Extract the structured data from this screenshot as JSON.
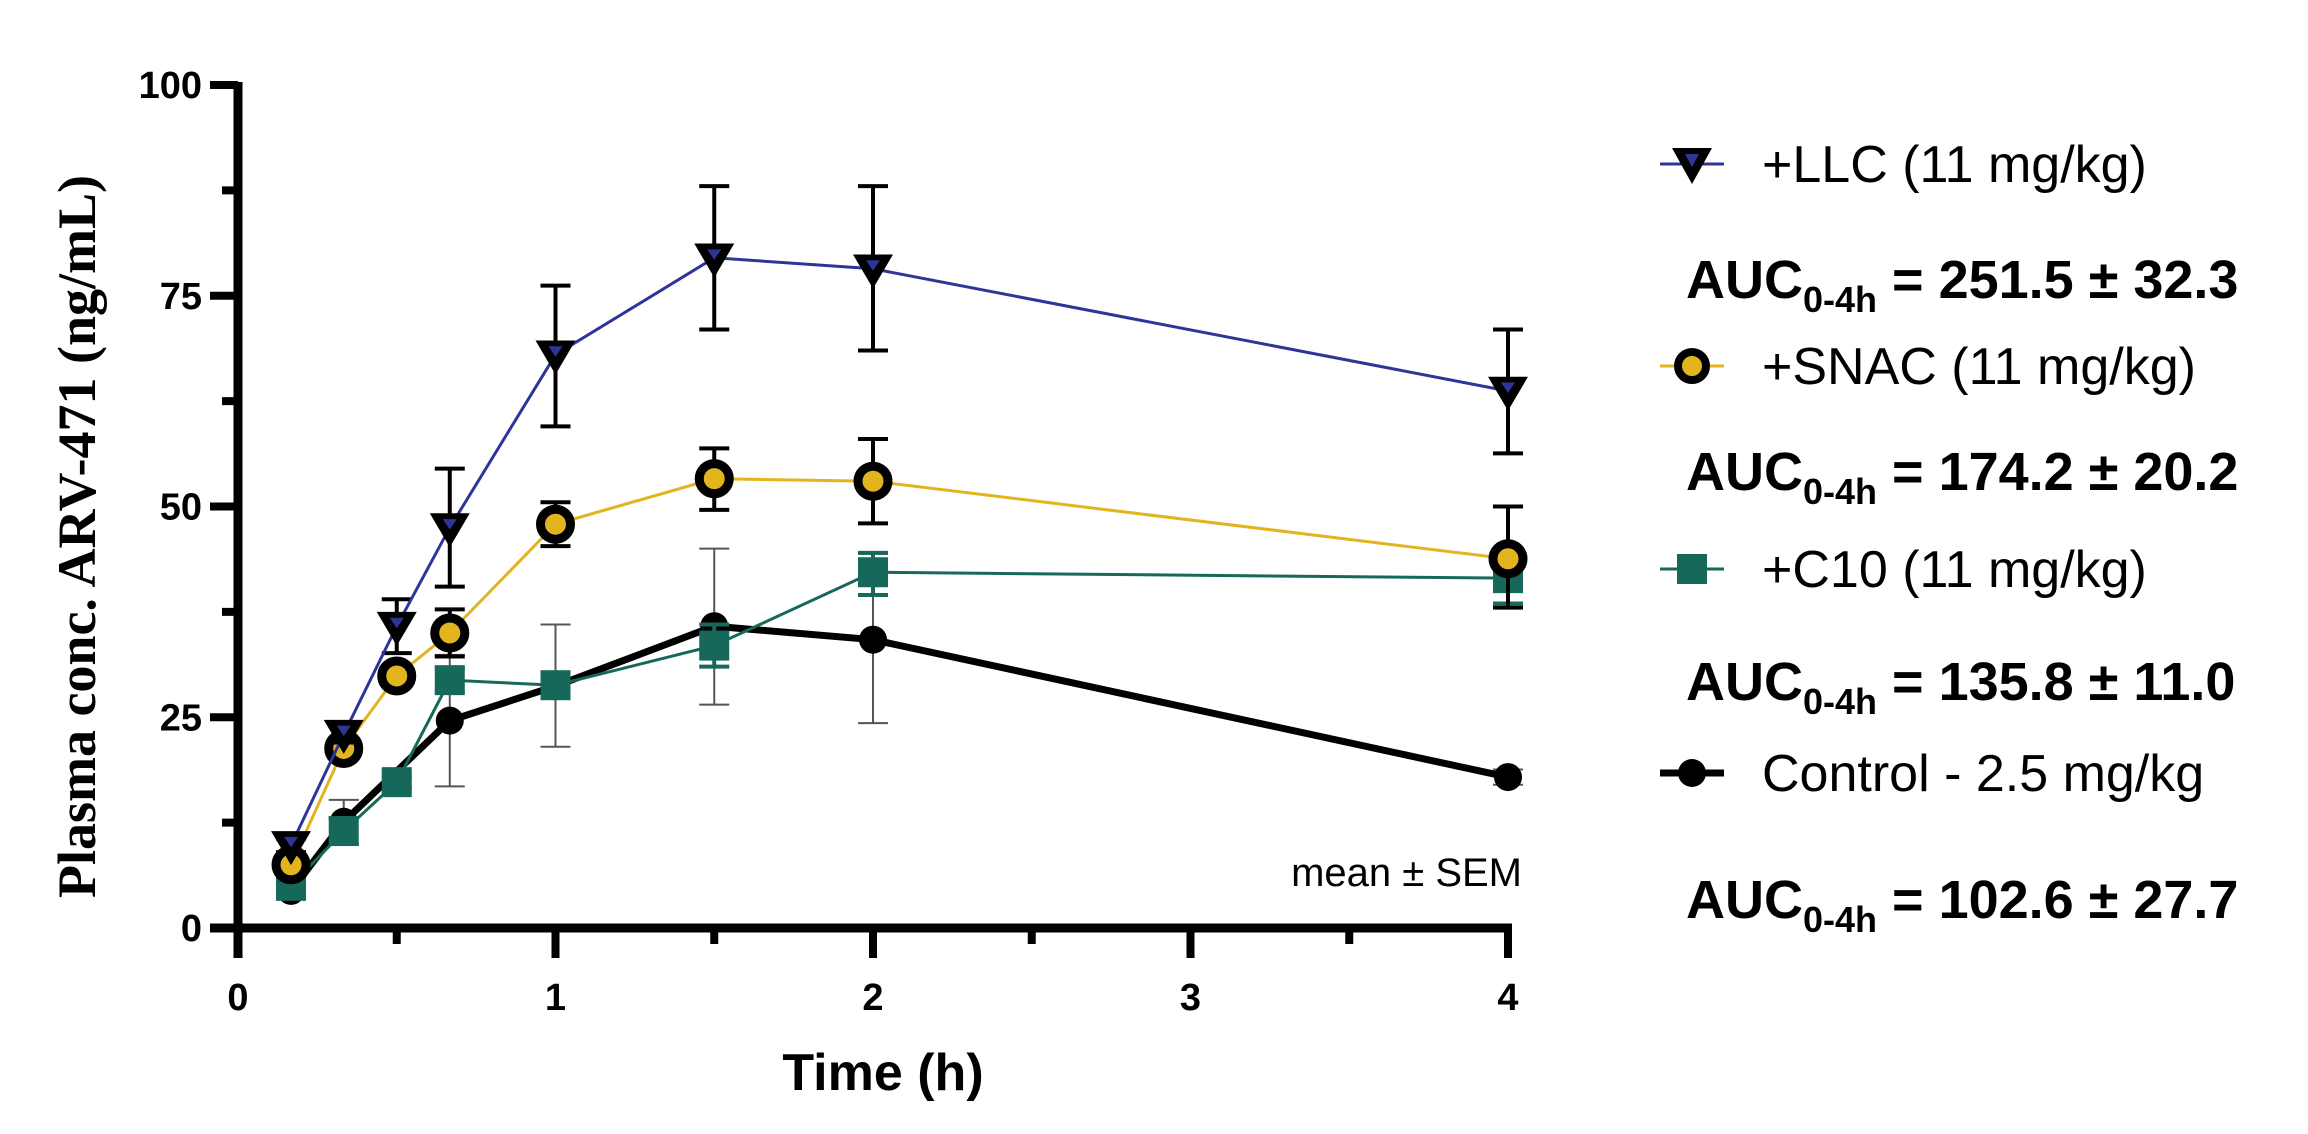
{
  "chart_data": {
    "type": "line",
    "title": "",
    "xlabel": "Time (h)",
    "ylabel": "Plasma conc. ARV-471 (ng/mL)",
    "xlim": [
      0,
      4
    ],
    "ylim": [
      0,
      100
    ],
    "x_ticks": [
      "0",
      "1",
      "2",
      "3",
      "4"
    ],
    "x_tick_values": [
      0,
      1,
      2,
      3,
      4
    ],
    "x_minor_tick_values": [
      0.5,
      1.5,
      2.5,
      3.5
    ],
    "y_ticks": [
      "0",
      "25",
      "50",
      "75",
      "100"
    ],
    "y_tick_values": [
      0,
      25,
      50,
      75,
      100
    ],
    "y_minor_tick_values": [
      12.5,
      37.5,
      62.5,
      87.5
    ],
    "grid": false,
    "annotation": "mean ± SEM",
    "legend_position": "right",
    "series": [
      {
        "name": "Control - 2.5 mg/kg",
        "marker": "circle",
        "line_color": "#000000",
        "fill_color": "#000000",
        "x": [
          0.167,
          0.333,
          0.667,
          1,
          1.5,
          2,
          4
        ],
        "values": [
          4.4,
          12.6,
          24.6,
          28.7,
          35.8,
          34.2,
          17.9
        ],
        "err_low": [
          4.0,
          10.0,
          16.8,
          21.5,
          26.5,
          24.3,
          17.0
        ],
        "err_high": [
          4.8,
          15.2,
          32.4,
          36.0,
          45.0,
          44.4,
          18.8
        ],
        "auc": {
          "prefix": "AUC",
          "sub": "0-4h",
          "text": " = 102.6 ± 27.7"
        }
      },
      {
        "name": "+C10 (11 mg/kg)",
        "marker": "square",
        "line_color": "#16695A",
        "fill_color": "#16695A",
        "x": [
          0.167,
          0.333,
          0.5,
          0.667,
          1,
          1.5,
          2,
          4
        ],
        "values": [
          5.0,
          11.5,
          17.3,
          29.4,
          28.8,
          33.5,
          42.2,
          41.5
        ],
        "err_low": [
          4.5,
          10.0,
          16.5,
          28.0,
          28.0,
          31.0,
          39.5,
          38.5
        ],
        "err_high": [
          5.5,
          13.0,
          18.0,
          30.8,
          29.6,
          36.0,
          44.5,
          43.0
        ],
        "auc": {
          "prefix": "AUC",
          "sub": "0-4h",
          "text": " = 135.8 ± 11.0"
        }
      },
      {
        "name": "+SNAC (11 mg/kg)",
        "marker": "circle-outline",
        "line_color": "#E2B41E",
        "fill_color": "#E2B41E",
        "x": [
          0.167,
          0.333,
          0.5,
          0.667,
          1,
          1.5,
          2,
          4
        ],
        "values": [
          7.5,
          21.3,
          29.9,
          35.0,
          47.9,
          53.3,
          53.0,
          43.8
        ],
        "err_low": [
          7.0,
          20.5,
          29.0,
          32.2,
          45.3,
          49.6,
          48.0,
          38.0
        ],
        "err_high": [
          8.0,
          22.1,
          30.8,
          37.8,
          50.5,
          56.9,
          58.0,
          50.0
        ],
        "auc": {
          "prefix": "AUC",
          "sub": "0-4h",
          "text": " = 174.2 ± 20.2"
        }
      },
      {
        "name": "+LLC (11 mg/kg)",
        "marker": "triangle-down",
        "line_color": "#2E3596",
        "fill_color": "#2E3596",
        "x": [
          0.167,
          0.333,
          0.5,
          0.667,
          1,
          1.5,
          2,
          4
        ],
        "values": [
          9.8,
          23.0,
          35.8,
          47.5,
          68.0,
          79.5,
          78.2,
          63.7
        ],
        "err_low": [
          9.0,
          22.0,
          32.6,
          40.5,
          59.5,
          71.0,
          68.5,
          56.3
        ],
        "err_high": [
          10.6,
          24.0,
          39.0,
          54.5,
          76.2,
          88.0,
          88.0,
          71.0
        ],
        "auc": {
          "prefix": "AUC",
          "sub": "0-4h",
          "text": " = 251.5 ± 32.3"
        }
      }
    ],
    "legend_order": [
      3,
      2,
      1,
      0
    ]
  }
}
